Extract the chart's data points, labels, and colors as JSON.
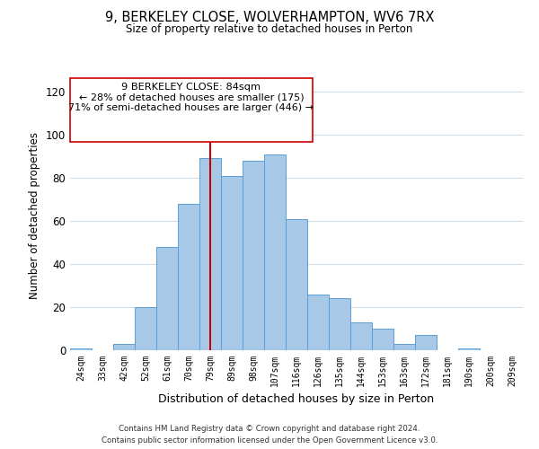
{
  "title": "9, BERKELEY CLOSE, WOLVERHAMPTON, WV6 7RX",
  "subtitle": "Size of property relative to detached houses in Perton",
  "xlabel": "Distribution of detached houses by size in Perton",
  "ylabel": "Number of detached properties",
  "categories": [
    "24sqm",
    "33sqm",
    "42sqm",
    "52sqm",
    "61sqm",
    "70sqm",
    "79sqm",
    "89sqm",
    "98sqm",
    "107sqm",
    "116sqm",
    "126sqm",
    "135sqm",
    "144sqm",
    "153sqm",
    "163sqm",
    "172sqm",
    "181sqm",
    "190sqm",
    "200sqm",
    "209sqm"
  ],
  "values": [
    1,
    0,
    3,
    20,
    48,
    68,
    89,
    81,
    88,
    91,
    61,
    26,
    24,
    13,
    10,
    3,
    7,
    0,
    1,
    0,
    0
  ],
  "bar_color": "#a8c8e8",
  "bar_edge_color": "#5a9fd4",
  "vline_x_index": 6,
  "vline_color": "#cc0000",
  "annotation_title": "9 BERKELEY CLOSE: 84sqm",
  "annotation_line1": "← 28% of detached houses are smaller (175)",
  "annotation_line2": "71% of semi-detached houses are larger (446) →",
  "annotation_box_color": "#ffffff",
  "annotation_box_edge": "#cc0000",
  "ylim": [
    0,
    125
  ],
  "yticks": [
    0,
    20,
    40,
    60,
    80,
    100,
    120
  ],
  "footer_line1": "Contains HM Land Registry data © Crown copyright and database right 2024.",
  "footer_line2": "Contains public sector information licensed under the Open Government Licence v3.0.",
  "background_color": "#ffffff",
  "grid_color": "#d0dce8"
}
